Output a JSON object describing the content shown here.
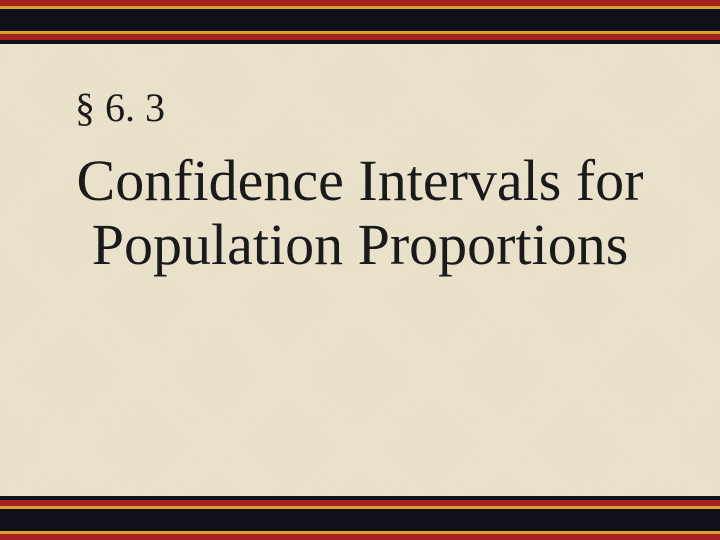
{
  "slide": {
    "section_number": "§ 6. 3",
    "title": "Confidence Intervals for Population Proportions",
    "background_color": "#ece3cc",
    "text_color": "#1a1a1a",
    "section_fontsize": 40,
    "title_fontsize": 58
  },
  "border": {
    "top_stripes": [
      {
        "color": "#a52020",
        "height": 6
      },
      {
        "color": "#d9a030",
        "height": 3
      },
      {
        "color": "#101018",
        "height": 22
      },
      {
        "color": "#d9a030",
        "height": 3
      },
      {
        "color": "#a52020",
        "height": 6
      },
      {
        "color": "#101018",
        "height": 4
      }
    ],
    "bottom_stripes": [
      {
        "color": "#101018",
        "height": 4
      },
      {
        "color": "#a52020",
        "height": 6
      },
      {
        "color": "#d9a030",
        "height": 3
      },
      {
        "color": "#101018",
        "height": 22
      },
      {
        "color": "#d9a030",
        "height": 3
      },
      {
        "color": "#a52020",
        "height": 6
      }
    ]
  }
}
